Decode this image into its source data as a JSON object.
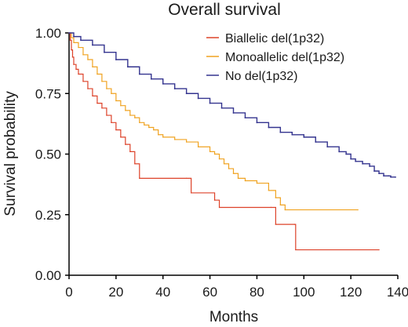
{
  "chart_data": {
    "type": "line",
    "title": "Overall survival",
    "xlabel": "Months",
    "ylabel": "Survival probability",
    "xlim": [
      0,
      140
    ],
    "ylim": [
      0,
      1
    ],
    "x_ticks": [
      "0",
      "20",
      "40",
      "60",
      "80",
      "100",
      "120",
      "140"
    ],
    "y_ticks": [
      "0.00",
      "0.25",
      "0.50",
      "0.75",
      "1.00"
    ],
    "grid": false,
    "legend_position": "top-right",
    "series": [
      {
        "name": "Biallelic del(1p32)",
        "color": "#dd4229",
        "points": [
          [
            0,
            1.0
          ],
          [
            0.5,
            0.97
          ],
          [
            1,
            0.93
          ],
          [
            1.5,
            0.9
          ],
          [
            2,
            0.87
          ],
          [
            3,
            0.85
          ],
          [
            4,
            0.83
          ],
          [
            6,
            0.8
          ],
          [
            8,
            0.77
          ],
          [
            10,
            0.74
          ],
          [
            12,
            0.71
          ],
          [
            14,
            0.69
          ],
          [
            16,
            0.66
          ],
          [
            18,
            0.63
          ],
          [
            20,
            0.6
          ],
          [
            22,
            0.57
          ],
          [
            24,
            0.54
          ],
          [
            26,
            0.51
          ],
          [
            28,
            0.46
          ],
          [
            30,
            0.4
          ],
          [
            50,
            0.4
          ],
          [
            52,
            0.34
          ],
          [
            62,
            0.31
          ],
          [
            64,
            0.28
          ],
          [
            86,
            0.28
          ],
          [
            88,
            0.21
          ],
          [
            96,
            0.21
          ],
          [
            96.5,
            0.105
          ],
          [
            132,
            0.105
          ]
        ]
      },
      {
        "name": "Monoallelic del(1p32)",
        "color": "#f0a321",
        "points": [
          [
            0,
            1.0
          ],
          [
            1,
            0.98
          ],
          [
            2,
            0.96
          ],
          [
            4,
            0.94
          ],
          [
            6,
            0.91
          ],
          [
            8,
            0.89
          ],
          [
            10,
            0.86
          ],
          [
            12,
            0.83
          ],
          [
            14,
            0.8
          ],
          [
            16,
            0.77
          ],
          [
            18,
            0.75
          ],
          [
            20,
            0.72
          ],
          [
            22,
            0.7
          ],
          [
            24,
            0.68
          ],
          [
            26,
            0.66
          ],
          [
            28,
            0.65
          ],
          [
            30,
            0.63
          ],
          [
            32,
            0.62
          ],
          [
            34,
            0.61
          ],
          [
            36,
            0.6
          ],
          [
            38,
            0.58
          ],
          [
            40,
            0.57
          ],
          [
            45,
            0.56
          ],
          [
            50,
            0.55
          ],
          [
            55,
            0.53
          ],
          [
            60,
            0.51
          ],
          [
            62,
            0.5
          ],
          [
            64,
            0.48
          ],
          [
            66,
            0.46
          ],
          [
            68,
            0.44
          ],
          [
            70,
            0.42
          ],
          [
            72,
            0.4
          ],
          [
            75,
            0.39
          ],
          [
            80,
            0.38
          ],
          [
            85,
            0.35
          ],
          [
            88,
            0.32
          ],
          [
            90,
            0.29
          ],
          [
            92,
            0.27
          ],
          [
            123,
            0.27
          ]
        ]
      },
      {
        "name": "No del(1p32)",
        "color": "#34348f",
        "points": [
          [
            0,
            1.0
          ],
          [
            2,
            0.985
          ],
          [
            5,
            0.97
          ],
          [
            10,
            0.95
          ],
          [
            15,
            0.92
          ],
          [
            20,
            0.89
          ],
          [
            25,
            0.86
          ],
          [
            30,
            0.83
          ],
          [
            35,
            0.81
          ],
          [
            40,
            0.79
          ],
          [
            45,
            0.77
          ],
          [
            50,
            0.75
          ],
          [
            55,
            0.73
          ],
          [
            60,
            0.71
          ],
          [
            65,
            0.69
          ],
          [
            70,
            0.67
          ],
          [
            75,
            0.65
          ],
          [
            80,
            0.63
          ],
          [
            85,
            0.61
          ],
          [
            90,
            0.59
          ],
          [
            95,
            0.58
          ],
          [
            100,
            0.57
          ],
          [
            105,
            0.55
          ],
          [
            110,
            0.53
          ],
          [
            115,
            0.51
          ],
          [
            118,
            0.5
          ],
          [
            120,
            0.48
          ],
          [
            122,
            0.47
          ],
          [
            125,
            0.46
          ],
          [
            128,
            0.45
          ],
          [
            130,
            0.43
          ],
          [
            132,
            0.42
          ],
          [
            134,
            0.41
          ],
          [
            136,
            0.41
          ],
          [
            137,
            0.405
          ],
          [
            139,
            0.405
          ]
        ]
      }
    ]
  }
}
